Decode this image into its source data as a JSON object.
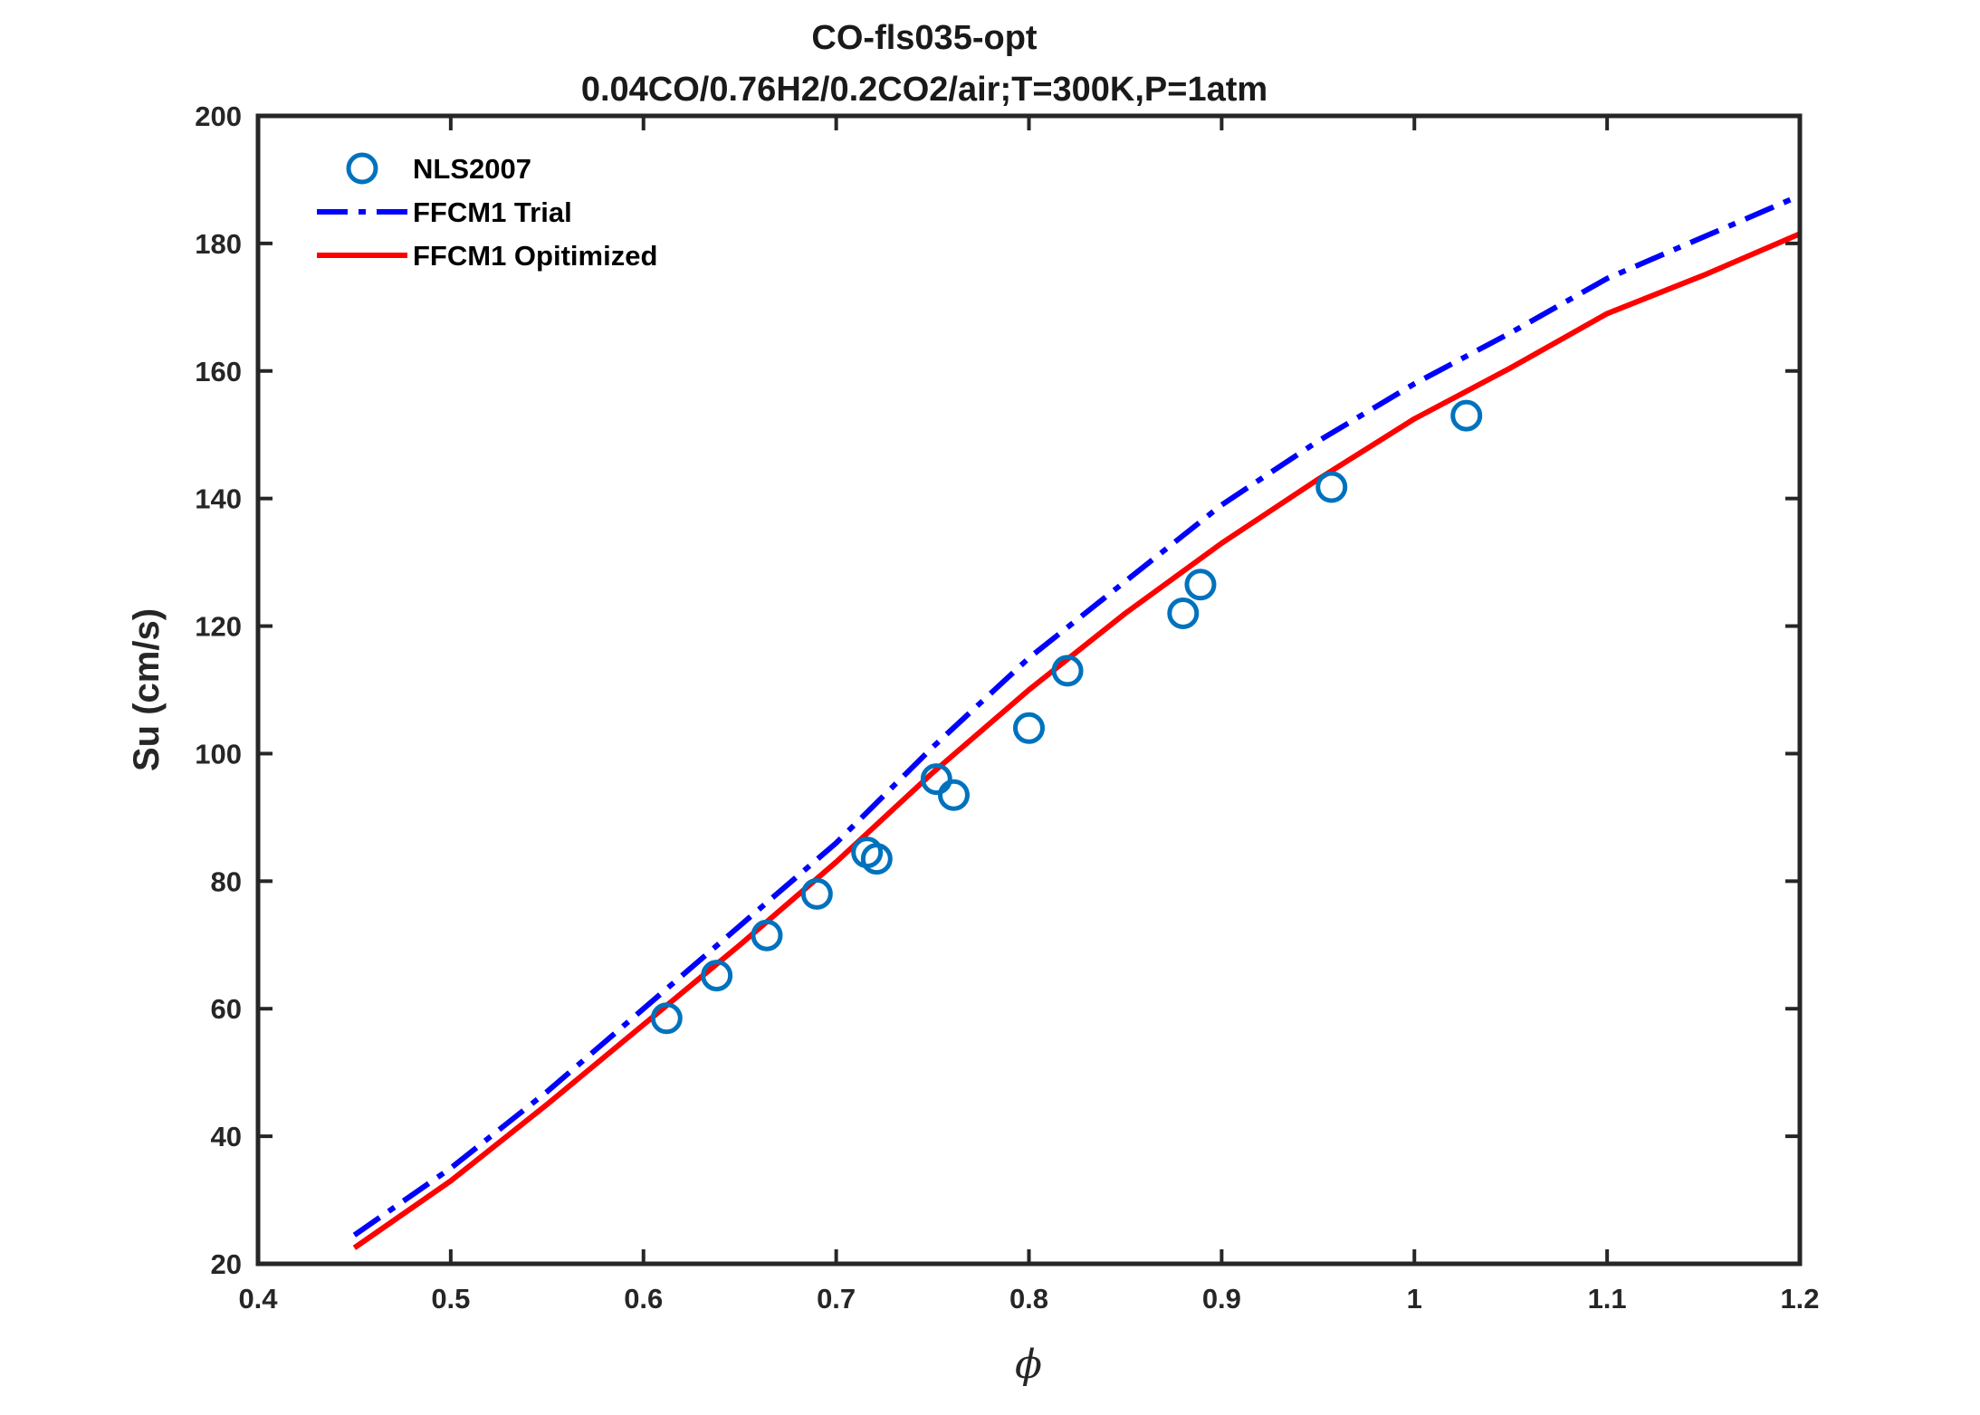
{
  "chart_data": {
    "type": "line",
    "title": "CO-fls035-opt",
    "subtitle": "0.04CO/0.76H2/0.2CO2/air;T=300K,P=1atm",
    "xlabel": "ϕ",
    "ylabel": "Su (cm/s)",
    "xlim": [
      0.4,
      1.2
    ],
    "ylim": [
      20,
      200
    ],
    "xticks": [
      0.4,
      0.5,
      0.6,
      0.7,
      0.8,
      0.9,
      1.0,
      1.1,
      1.2
    ],
    "xtick_labels": [
      "0.4",
      "0.5",
      "0.6",
      "0.7",
      "0.8",
      "0.9",
      "1",
      "1.1",
      "1.2"
    ],
    "yticks": [
      20,
      40,
      60,
      80,
      100,
      120,
      140,
      160,
      180,
      200
    ],
    "ytick_labels": [
      "20",
      "40",
      "60",
      "80",
      "100",
      "120",
      "140",
      "160",
      "180",
      "200"
    ],
    "grid": false,
    "legend_position": "top-left",
    "series": [
      {
        "name": "NLS2007",
        "kind": "markers",
        "marker": "circle",
        "color": "#0072BD",
        "x": [
          0.612,
          0.638,
          0.664,
          0.69,
          0.716,
          0.721,
          0.752,
          0.761,
          0.8,
          0.82,
          0.88,
          0.889,
          0.957,
          1.027
        ],
        "y": [
          58.5,
          65.2,
          71.5,
          78.0,
          84.5,
          83.5,
          96.0,
          93.5,
          104.0,
          113.0,
          122.0,
          126.5,
          141.8,
          153.0
        ]
      },
      {
        "name": "FFCM1 Trial",
        "kind": "line",
        "style": "dashdot",
        "color": "#0000FF",
        "x": [
          0.45,
          0.5,
          0.55,
          0.6,
          0.65,
          0.7,
          0.75,
          0.8,
          0.85,
          0.9,
          0.95,
          1.0,
          1.05,
          1.1,
          1.15,
          1.2
        ],
        "y": [
          24.5,
          35.0,
          47.0,
          60.0,
          73.0,
          86.0,
          101.0,
          115.0,
          127.0,
          139.0,
          149.0,
          158.0,
          166.0,
          174.5,
          181.0,
          187.5
        ]
      },
      {
        "name": "FFCM1 Opitimized",
        "kind": "line",
        "style": "solid",
        "color": "#FF0000",
        "x": [
          0.45,
          0.5,
          0.55,
          0.6,
          0.65,
          0.7,
          0.75,
          0.8,
          0.85,
          0.9,
          0.95,
          1.0,
          1.05,
          1.1,
          1.15,
          1.2
        ],
        "y": [
          22.5,
          33.0,
          45.0,
          57.5,
          70.0,
          83.0,
          97.0,
          110.0,
          122.0,
          133.0,
          143.0,
          152.5,
          160.5,
          169.0,
          175.0,
          181.5
        ]
      }
    ]
  }
}
